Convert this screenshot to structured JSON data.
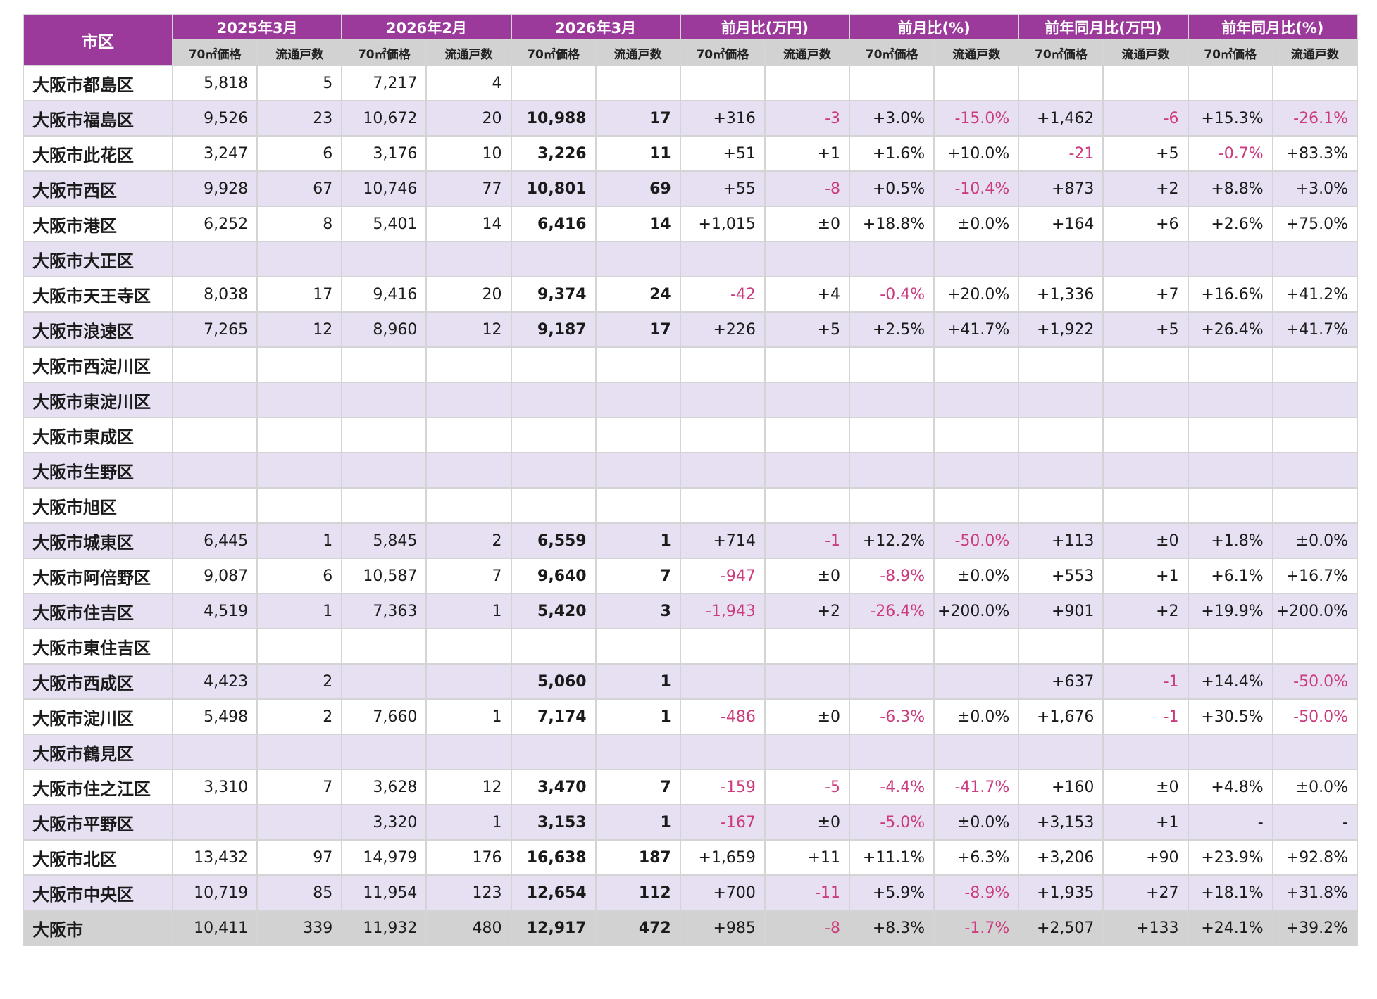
{
  "header": {
    "city_label": "市区",
    "groups": [
      "2025年3月",
      "2026年2月",
      "2026年3月",
      "前月比(万円)",
      "前月比(%)",
      "前年同月比(万円)",
      "前年同月比(%)"
    ],
    "sub": [
      "70㎡価格",
      "流通戸数"
    ]
  },
  "rows": [
    {
      "name": "大阪市都島区",
      "v": [
        "5,818",
        "5",
        "7,217",
        "4",
        "",
        "",
        "",
        "",
        "",
        "",
        "",
        "",
        "",
        ""
      ]
    },
    {
      "name": "大阪市福島区",
      "v": [
        "9,526",
        "23",
        "10,672",
        "20",
        "10,988",
        "17",
        "+316",
        "-3",
        "+3.0%",
        "-15.0%",
        "+1,462",
        "-6",
        "+15.3%",
        "-26.1%"
      ]
    },
    {
      "name": "大阪市此花区",
      "v": [
        "3,247",
        "6",
        "3,176",
        "10",
        "3,226",
        "11",
        "+51",
        "+1",
        "+1.6%",
        "+10.0%",
        "-21",
        "+5",
        "-0.7%",
        "+83.3%"
      ]
    },
    {
      "name": "大阪市西区",
      "v": [
        "9,928",
        "67",
        "10,746",
        "77",
        "10,801",
        "69",
        "+55",
        "-8",
        "+0.5%",
        "-10.4%",
        "+873",
        "+2",
        "+8.8%",
        "+3.0%"
      ]
    },
    {
      "name": "大阪市港区",
      "v": [
        "6,252",
        "8",
        "5,401",
        "14",
        "6,416",
        "14",
        "+1,015",
        "±0",
        "+18.8%",
        "±0.0%",
        "+164",
        "+6",
        "+2.6%",
        "+75.0%"
      ]
    },
    {
      "name": "大阪市大正区",
      "v": [
        "",
        "",
        "",
        "",
        "",
        "",
        "",
        "",
        "",
        "",
        "",
        "",
        "",
        ""
      ]
    },
    {
      "name": "大阪市天王寺区",
      "v": [
        "8,038",
        "17",
        "9,416",
        "20",
        "9,374",
        "24",
        "-42",
        "+4",
        "-0.4%",
        "+20.0%",
        "+1,336",
        "+7",
        "+16.6%",
        "+41.2%"
      ]
    },
    {
      "name": "大阪市浪速区",
      "v": [
        "7,265",
        "12",
        "8,960",
        "12",
        "9,187",
        "17",
        "+226",
        "+5",
        "+2.5%",
        "+41.7%",
        "+1,922",
        "+5",
        "+26.4%",
        "+41.7%"
      ]
    },
    {
      "name": "大阪市西淀川区",
      "v": [
        "",
        "",
        "",
        "",
        "",
        "",
        "",
        "",
        "",
        "",
        "",
        "",
        "",
        ""
      ]
    },
    {
      "name": "大阪市東淀川区",
      "v": [
        "",
        "",
        "",
        "",
        "",
        "",
        "",
        "",
        "",
        "",
        "",
        "",
        "",
        ""
      ]
    },
    {
      "name": "大阪市東成区",
      "v": [
        "",
        "",
        "",
        "",
        "",
        "",
        "",
        "",
        "",
        "",
        "",
        "",
        "",
        ""
      ]
    },
    {
      "name": "大阪市生野区",
      "v": [
        "",
        "",
        "",
        "",
        "",
        "",
        "",
        "",
        "",
        "",
        "",
        "",
        "",
        ""
      ]
    },
    {
      "name": "大阪市旭区",
      "v": [
        "",
        "",
        "",
        "",
        "",
        "",
        "",
        "",
        "",
        "",
        "",
        "",
        "",
        ""
      ]
    },
    {
      "name": "大阪市城東区",
      "v": [
        "6,445",
        "1",
        "5,845",
        "2",
        "6,559",
        "1",
        "+714",
        "-1",
        "+12.2%",
        "-50.0%",
        "+113",
        "±0",
        "+1.8%",
        "±0.0%"
      ]
    },
    {
      "name": "大阪市阿倍野区",
      "v": [
        "9,087",
        "6",
        "10,587",
        "7",
        "9,640",
        "7",
        "-947",
        "±0",
        "-8.9%",
        "±0.0%",
        "+553",
        "+1",
        "+6.1%",
        "+16.7%"
      ]
    },
    {
      "name": "大阪市住吉区",
      "v": [
        "4,519",
        "1",
        "7,363",
        "1",
        "5,420",
        "3",
        "-1,943",
        "+2",
        "-26.4%",
        "+200.0%",
        "+901",
        "+2",
        "+19.9%",
        "+200.0%"
      ]
    },
    {
      "name": "大阪市東住吉区",
      "v": [
        "",
        "",
        "",
        "",
        "",
        "",
        "",
        "",
        "",
        "",
        "",
        "",
        "",
        ""
      ]
    },
    {
      "name": "大阪市西成区",
      "v": [
        "4,423",
        "2",
        "",
        "",
        "5,060",
        "1",
        "",
        "",
        "",
        "",
        "+637",
        "-1",
        "+14.4%",
        "-50.0%"
      ]
    },
    {
      "name": "大阪市淀川区",
      "v": [
        "5,498",
        "2",
        "7,660",
        "1",
        "7,174",
        "1",
        "-486",
        "±0",
        "-6.3%",
        "±0.0%",
        "+1,676",
        "-1",
        "+30.5%",
        "-50.0%"
      ]
    },
    {
      "name": "大阪市鶴見区",
      "v": [
        "",
        "",
        "",
        "",
        "",
        "",
        "",
        "",
        "",
        "",
        "",
        "",
        "",
        ""
      ]
    },
    {
      "name": "大阪市住之江区",
      "v": [
        "3,310",
        "7",
        "3,628",
        "12",
        "3,470",
        "7",
        "-159",
        "-5",
        "-4.4%",
        "-41.7%",
        "+160",
        "±0",
        "+4.8%",
        "±0.0%"
      ]
    },
    {
      "name": "大阪市平野区",
      "v": [
        "",
        "",
        "3,320",
        "1",
        "3,153",
        "1",
        "-167",
        "±0",
        "-5.0%",
        "±0.0%",
        "+3,153",
        "+1",
        "-",
        "-"
      ]
    },
    {
      "name": "大阪市北区",
      "v": [
        "13,432",
        "97",
        "14,979",
        "176",
        "16,638",
        "187",
        "+1,659",
        "+11",
        "+11.1%",
        "+6.3%",
        "+3,206",
        "+90",
        "+23.9%",
        "+92.8%"
      ]
    },
    {
      "name": "大阪市中央区",
      "v": [
        "10,719",
        "85",
        "11,954",
        "123",
        "12,654",
        "112",
        "+700",
        "-11",
        "+5.9%",
        "-8.9%",
        "+1,935",
        "+27",
        "+18.1%",
        "+31.8%"
      ]
    },
    {
      "name": "大阪市",
      "v": [
        "10,411",
        "339",
        "11,932",
        "480",
        "12,917",
        "472",
        "+985",
        "-8",
        "+8.3%",
        "-1.7%",
        "+2,507",
        "+133",
        "+24.1%",
        "+39.2%"
      ]
    }
  ],
  "colors": {
    "header": "#9b3a9b",
    "subheader": "#d2d2d2",
    "band": "#e6e0f2",
    "negative": "#cc3b7e"
  }
}
